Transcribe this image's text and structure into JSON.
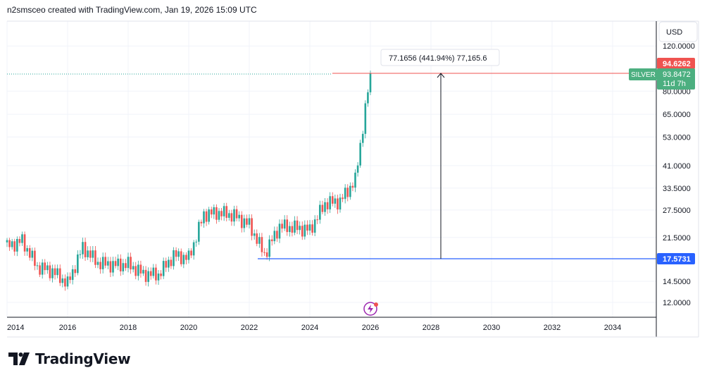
{
  "header": {
    "text": "n2smsceo created with TradingView.com, Jan 19, 2026 15:09 UTC"
  },
  "logo": {
    "text": "TradingView"
  },
  "currency_button": {
    "label": "USD"
  },
  "colors": {
    "up": "#26a69a",
    "down": "#ef5350",
    "grid": "#f0f3fa",
    "axis": "#131722",
    "price_line": "#ef5350",
    "support_line": "#2962ff",
    "silver_label": "#4caf80",
    "alert_icon": "#9c27b0"
  },
  "labels": {
    "measure": "77.1656 (441.94%) 77,165.6",
    "high_price": "94.6262",
    "symbol": "SILVER",
    "last_price": "93.8472",
    "countdown": "11d 7h",
    "support_price": "17.5731"
  },
  "chart_data": {
    "type": "candlestick",
    "symbol": "SILVER",
    "y_scale": "log",
    "y_ticks": [
      "120.0000",
      "80.0000",
      "65.0000",
      "53.0000",
      "41.0000",
      "33.5000",
      "27.5000",
      "21.5000",
      "14.5000",
      "12.0000"
    ],
    "x_ticks": [
      "2014",
      "2016",
      "2018",
      "2020",
      "2022",
      "2024",
      "2026",
      "2028",
      "2030",
      "2032",
      "2034"
    ],
    "x_range": [
      2014.0,
      2035.0
    ],
    "grid": true,
    "support_level": 17.5731,
    "resistance_level": 94.6262,
    "last_price": 93.8472,
    "measure_from": 17.5731,
    "measure_to": 94.6262,
    "series": [
      {
        "time": 2014.0,
        "close": 19.8
      },
      {
        "time": 2014.5,
        "close": 20.9
      },
      {
        "time": 2015.0,
        "close": 16.5
      },
      {
        "time": 2015.5,
        "close": 15.9
      },
      {
        "time": 2016.0,
        "close": 14.2
      },
      {
        "time": 2016.5,
        "close": 19.7
      },
      {
        "time": 2017.0,
        "close": 17.1
      },
      {
        "time": 2017.5,
        "close": 16.8
      },
      {
        "time": 2018.0,
        "close": 16.9
      },
      {
        "time": 2018.5,
        "close": 15.5
      },
      {
        "time": 2019.0,
        "close": 15.4
      },
      {
        "time": 2019.5,
        "close": 18.3
      },
      {
        "time": 2020.0,
        "close": 17.9
      },
      {
        "time": 2020.5,
        "close": 26.5
      },
      {
        "time": 2021.0,
        "close": 26.9
      },
      {
        "time": 2021.5,
        "close": 26.2
      },
      {
        "time": 2022.0,
        "close": 24.1
      },
      {
        "time": 2022.5,
        "close": 18.5
      },
      {
        "time": 2023.0,
        "close": 23.8
      },
      {
        "time": 2023.5,
        "close": 23.5
      },
      {
        "time": 2024.0,
        "close": 23.0
      },
      {
        "time": 2024.5,
        "close": 29.2
      },
      {
        "time": 2025.0,
        "close": 29.8
      },
      {
        "time": 2025.5,
        "close": 36.0
      },
      {
        "time": 2026.0,
        "close": 93.8
      }
    ]
  }
}
